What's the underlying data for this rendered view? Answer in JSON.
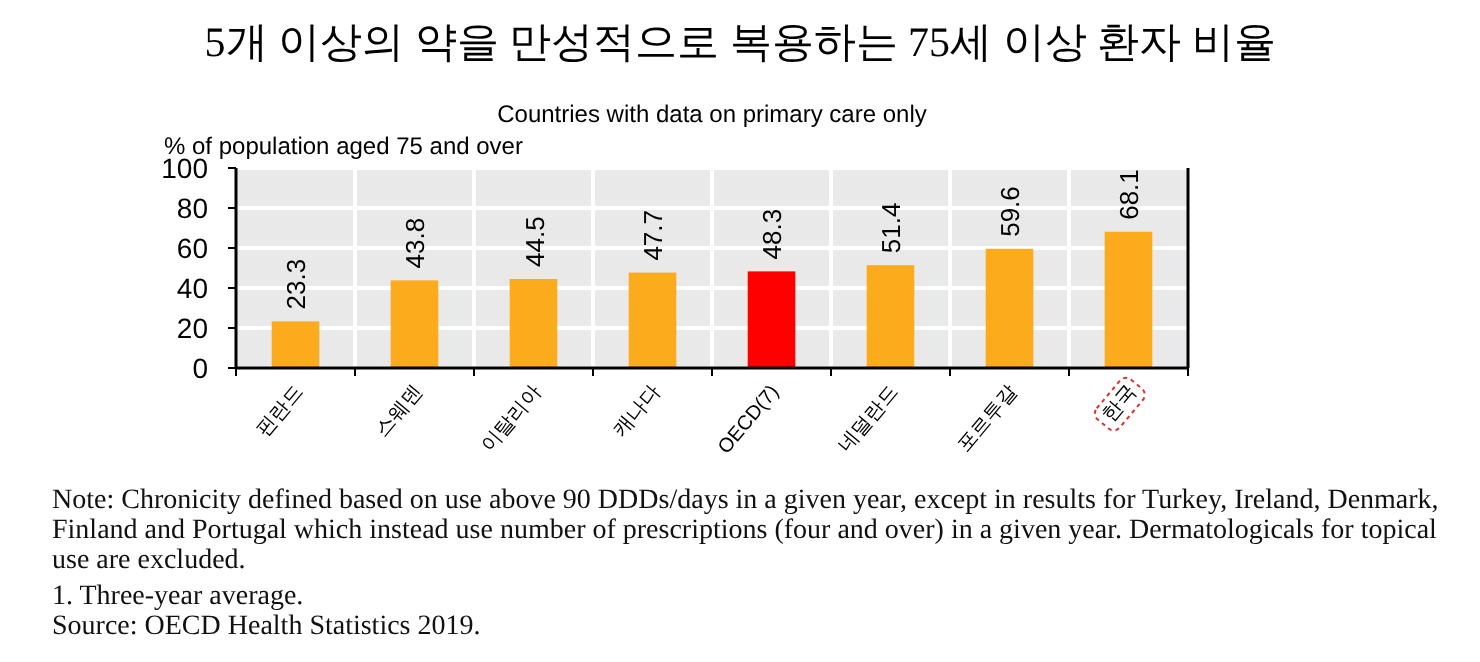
{
  "chart_data": {
    "type": "bar",
    "title": "5개 이상의 약을 만성적으로 복용하는 75세 이상 환자 비율",
    "subtitle": "Countries with data on primary care only",
    "ylabel": "% of population aged 75 and over",
    "categories": [
      "핀란드",
      "스웨덴",
      "이탈리아",
      "캐나다",
      "OECD(7)",
      "네덜란드",
      "포르투갈",
      "한국"
    ],
    "values": [
      23.3,
      43.8,
      44.5,
      47.7,
      48.3,
      51.4,
      59.6,
      68.1
    ],
    "colors": [
      "#fbab1c",
      "#fbab1c",
      "#fbab1c",
      "#fbab1c",
      "#ff0000",
      "#fbab1c",
      "#fbab1c",
      "#fbab1c"
    ],
    "ylim": [
      0,
      100
    ],
    "yticks": [
      0,
      20,
      40,
      60,
      80,
      100
    ],
    "grid": true,
    "data_labels": true,
    "annotations": [
      "Note: Chronicity defined based on use above 90 DDDs/days in a given year, except in results for Turkey, Ireland, Denmark, Finland and Portugal which instead use number of prescriptions (four and over) in a given year. Dermatologicals for topical use are excluded.",
      "1. Three-year average.",
      "Source: OECD Health Statistics 2019."
    ]
  }
}
